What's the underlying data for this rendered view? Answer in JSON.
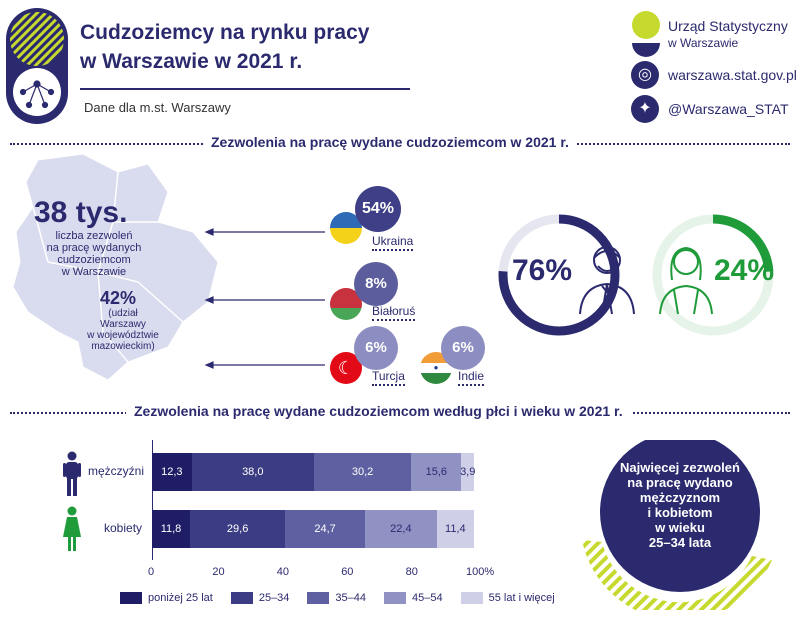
{
  "header": {
    "title_line1": "Cudzoziemcy na rynku pracy",
    "title_line2": "w Warszawie w 2021 r.",
    "subtitle": "Dane dla m.st. Warszawy"
  },
  "logo": {
    "name_line1": "Urząd Statystyczny",
    "name_line2": "w Warszawie",
    "website": "warszawa.stat.gov.pl",
    "twitter": "@Warszawa_STAT"
  },
  "section1": {
    "title": "Zezwolenia na pracę wydane cudzoziemcom w 2021 r.",
    "total_value": "38 tys.",
    "total_desc": [
      "liczba zezwoleń",
      "na pracę wydanych",
      "cudzoziemcom",
      "w Warszawie"
    ],
    "share_value": "42%",
    "share_desc": [
      "(udział",
      "Warszawy",
      "w województwie",
      "mazowieckim)"
    ],
    "countries": [
      {
        "name": "Ukraina",
        "pct": "54%"
      },
      {
        "name": "Białoruś",
        "pct": "8%"
      },
      {
        "name": "Turcja",
        "pct": "6%"
      },
      {
        "name": "Indie",
        "pct": "6%"
      }
    ],
    "men_pct": "76%",
    "women_pct": "24%",
    "men_value": 76,
    "women_value": 24
  },
  "section2": {
    "title": "Zezwolenia na pracę wydane cudzoziemcom według płci i wieku w 2021 r.",
    "note": [
      "Najwięcej zezwoleń",
      "na pracę wydano",
      "mężczyznom",
      "i kobietom",
      "w wieku",
      "25–34 lata"
    ]
  },
  "colors": {
    "navy": "#2b2a6e",
    "green": "#1f9b3a",
    "lime": "#c6d92e",
    "age_colors": [
      "#1f1d66",
      "#3c3c84",
      "#5f60a1",
      "#9192c4",
      "#cfd0e8"
    ]
  },
  "chart_data": {
    "type": "bar",
    "orientation": "horizontal",
    "stacked": true,
    "title": "Zezwolenia na pracę wydane cudzoziemcom według płci i wieku w 2021 r.",
    "categories": [
      "mężczyźni",
      "kobiety"
    ],
    "series": [
      {
        "name": "poniżej 25 lat",
        "values": [
          12.3,
          11.8
        ],
        "labels": [
          "12,3",
          "11,8"
        ]
      },
      {
        "name": "25–34",
        "values": [
          38.0,
          29.6
        ],
        "labels": [
          "38,0",
          "29,6"
        ]
      },
      {
        "name": "35–44",
        "values": [
          30.2,
          24.7
        ],
        "labels": [
          "30,2",
          "24,7"
        ]
      },
      {
        "name": "45–54",
        "values": [
          15.6,
          22.4
        ],
        "labels": [
          "15,6",
          "22,4"
        ]
      },
      {
        "name": "55 lat i więcej",
        "values": [
          3.9,
          11.4
        ],
        "labels": [
          "3,9",
          "11,4"
        ]
      }
    ],
    "xlim": [
      0,
      100
    ],
    "xticks": [
      "0",
      "20",
      "40",
      "60",
      "80",
      "100%"
    ],
    "legend_position": "bottom"
  }
}
